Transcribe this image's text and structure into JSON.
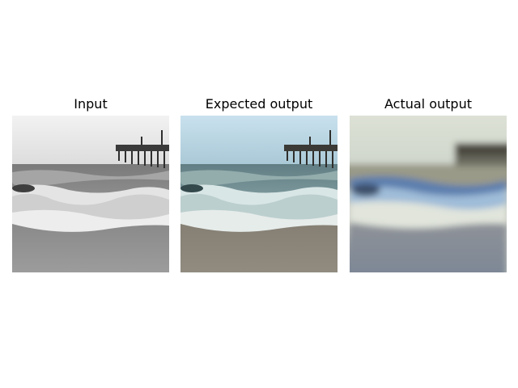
{
  "panels": [
    {
      "title": "Input",
      "style": "grayscale"
    },
    {
      "title": "Expected output",
      "style": "color"
    },
    {
      "title": "Actual output",
      "style": "blurry-color"
    }
  ],
  "colors": {
    "background": "#ffffff",
    "text": "#000000"
  }
}
